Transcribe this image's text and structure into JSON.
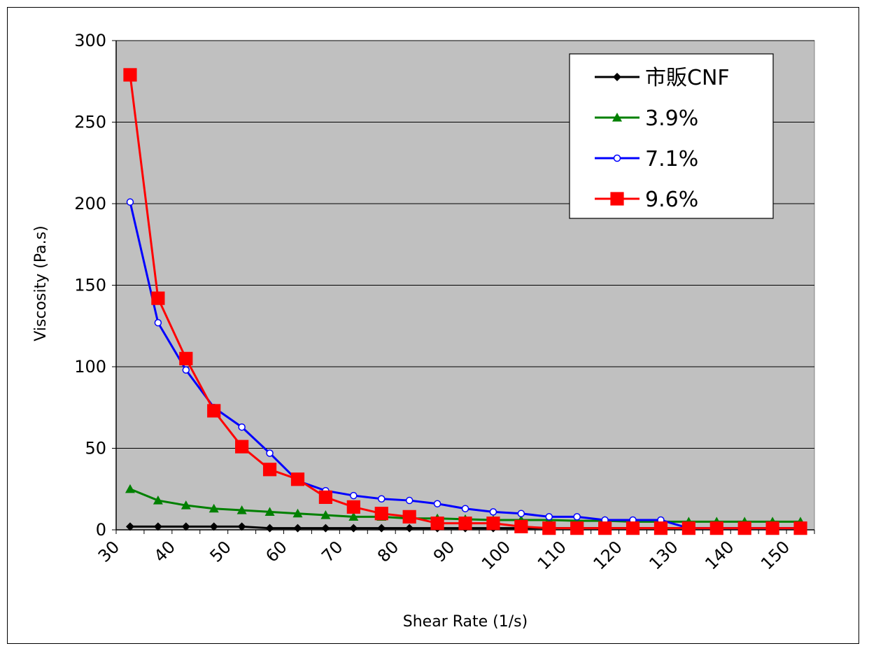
{
  "chart_data": {
    "type": "line",
    "title": "",
    "xlabel": "Shear Rate (1/s)",
    "ylabel": "Viscosity (Pa.s)",
    "xlim": [
      30,
      150
    ],
    "ylim": [
      0,
      300
    ],
    "x_ticks": [
      30,
      40,
      50,
      60,
      70,
      80,
      90,
      100,
      110,
      120,
      130,
      140,
      150
    ],
    "y_ticks": [
      0,
      50,
      100,
      150,
      200,
      250,
      300
    ],
    "x": [
      1,
      2,
      3,
      4,
      5,
      6,
      7,
      8,
      9,
      10,
      11,
      12,
      13,
      14,
      15,
      16,
      17,
      18,
      19,
      20,
      21,
      22,
      23,
      24,
      25
    ],
    "grid": "horizontal",
    "legend_position": "top-right",
    "plot_background": "#c0c0c0",
    "series": [
      {
        "name": "市販CNF",
        "color": "#000000",
        "marker": "diamond",
        "values": [
          2,
          2,
          2,
          2,
          2,
          1,
          1,
          1,
          1,
          1,
          1,
          1,
          1,
          1,
          1,
          1,
          1,
          1,
          1,
          1,
          1,
          1,
          1,
          1,
          1
        ]
      },
      {
        "name": "3.9%",
        "color": "#008000",
        "marker": "triangle",
        "values": [
          25,
          18,
          15,
          13,
          12,
          11,
          10,
          9,
          8,
          8,
          7,
          7,
          6.5,
          6,
          6,
          6,
          5.5,
          5.5,
          5,
          5,
          5,
          5,
          5,
          5,
          5
        ]
      },
      {
        "name": "7.1%",
        "color": "#0000ff",
        "marker": "circle-open",
        "values": [
          201,
          127,
          98,
          75,
          63,
          47,
          30,
          24,
          21,
          19,
          18,
          16,
          13,
          11,
          10,
          8,
          8,
          6,
          6,
          6,
          1,
          1,
          1,
          1,
          1
        ]
      },
      {
        "name": "9.6%",
        "color": "#ff0000",
        "marker": "square",
        "values": [
          279,
          142,
          105,
          73,
          51,
          37,
          31,
          20,
          14,
          10,
          8,
          4,
          4,
          4,
          2,
          1,
          1,
          1,
          1,
          1,
          1,
          1,
          1,
          1,
          1
        ]
      }
    ]
  }
}
